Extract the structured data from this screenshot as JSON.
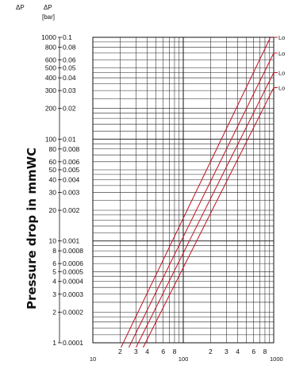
{
  "chart_data": {
    "type": "line",
    "title": "",
    "ylabel": "Pressure drop in mmWC",
    "xlabel": "",
    "x_scale": "log",
    "y_scale": "log",
    "xlim": [
      10,
      1000
    ],
    "ylim": [
      1,
      1000
    ],
    "grid": true,
    "legend_position": "right",
    "header_left": "ΔP",
    "header_right": "ΔP",
    "header_unit": "[bar]",
    "y_ticks": [
      {
        "mmwc": 1000,
        "mmwc_label": "1000",
        "bar_label": "0.1"
      },
      {
        "mmwc": 800,
        "mmwc_label": "800",
        "bar_label": "0.08"
      },
      {
        "mmwc": 600,
        "mmwc_label": "600",
        "bar_label": "0.06"
      },
      {
        "mmwc": 500,
        "mmwc_label": "500",
        "bar_label": "0.05"
      },
      {
        "mmwc": 400,
        "mmwc_label": "400",
        "bar_label": "0.04"
      },
      {
        "mmwc": 300,
        "mmwc_label": "300",
        "bar_label": "0.03"
      },
      {
        "mmwc": 200,
        "mmwc_label": "200",
        "bar_label": "0.02"
      },
      {
        "mmwc": 100,
        "mmwc_label": "100",
        "bar_label": "0.01"
      },
      {
        "mmwc": 80,
        "mmwc_label": "80",
        "bar_label": "0.008"
      },
      {
        "mmwc": 60,
        "mmwc_label": "60",
        "bar_label": "0.006"
      },
      {
        "mmwc": 50,
        "mmwc_label": "50",
        "bar_label": "0.005"
      },
      {
        "mmwc": 40,
        "mmwc_label": "40",
        "bar_label": "0.004"
      },
      {
        "mmwc": 30,
        "mmwc_label": "30",
        "bar_label": "0.003"
      },
      {
        "mmwc": 20,
        "mmwc_label": "20",
        "bar_label": "0.002"
      },
      {
        "mmwc": 10,
        "mmwc_label": "10",
        "bar_label": "0.001"
      },
      {
        "mmwc": 8,
        "mmwc_label": "8",
        "bar_label": "0.0008"
      },
      {
        "mmwc": 6,
        "mmwc_label": "6",
        "bar_label": "0.0006"
      },
      {
        "mmwc": 5,
        "mmwc_label": "5",
        "bar_label": "0.0005"
      },
      {
        "mmwc": 4,
        "mmwc_label": "4",
        "bar_label": "0.0004"
      },
      {
        "mmwc": 3,
        "mmwc_label": "3",
        "bar_label": "0.0003"
      },
      {
        "mmwc": 2,
        "mmwc_label": "2",
        "bar_label": "0.0002"
      },
      {
        "mmwc": 1,
        "mmwc_label": "1",
        "bar_label": "0.0001"
      }
    ],
    "x_decade_labels": [
      {
        "value": 10,
        "label": "10"
      },
      {
        "value": 100,
        "label": "100"
      },
      {
        "value": 1000,
        "label": "1000"
      }
    ],
    "x_minor_labels": [
      {
        "value": 20,
        "label": "2"
      },
      {
        "value": 30,
        "label": "3"
      },
      {
        "value": 40,
        "label": "4"
      },
      {
        "value": 60,
        "label": "6"
      },
      {
        "value": 80,
        "label": "8"
      },
      {
        "value": 200,
        "label": "2"
      },
      {
        "value": 300,
        "label": "3"
      },
      {
        "value": 400,
        "label": "4"
      },
      {
        "value": 600,
        "label": "6"
      },
      {
        "value": 800,
        "label": "8"
      }
    ],
    "series": [
      {
        "name": "Lo",
        "color": "#c0101e",
        "x": [
          20.5,
          920
        ],
        "y": [
          0.9,
          1000
        ]
      },
      {
        "name": "Lo",
        "color": "#c0101e",
        "x": [
          25,
          1000
        ],
        "y": [
          0.9,
          700
        ]
      },
      {
        "name": "Lo",
        "color": "#c0101e",
        "x": [
          30,
          1000
        ],
        "y": [
          0.9,
          450
        ]
      },
      {
        "name": "Lo",
        "color": "#c0101e",
        "x": [
          36,
          1000
        ],
        "y": [
          0.9,
          320
        ]
      }
    ],
    "legend": [
      {
        "label": "Lo",
        "y": 1000
      },
      {
        "label": "Lo",
        "y": 700
      },
      {
        "label": "Lo",
        "y": 450
      },
      {
        "label": "Lo",
        "y": 320
      }
    ]
  }
}
